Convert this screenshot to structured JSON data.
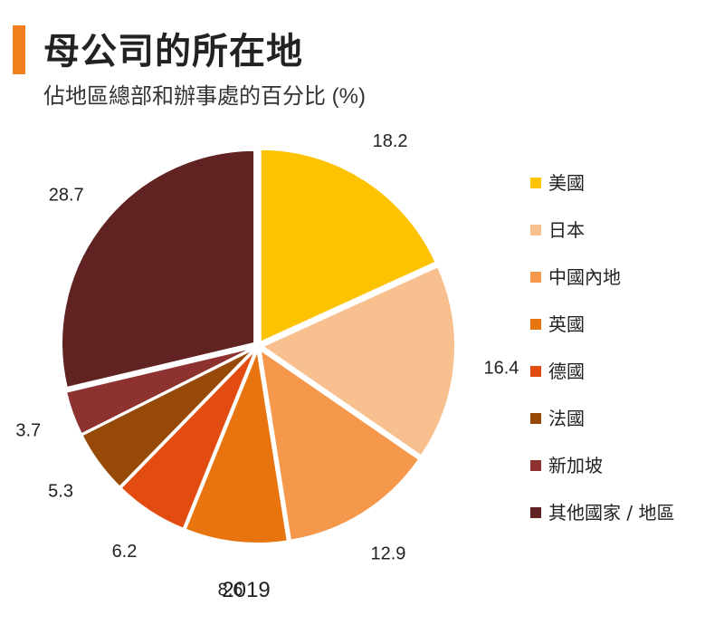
{
  "header": {
    "title": "母公司的所在地",
    "subtitle": "佔地區總部和辦事處的百分比 (%)",
    "accent_color": "#f07f1e"
  },
  "chart_data": {
    "type": "pie",
    "title": "母公司的所在地",
    "subtitle": "佔地區總部和辦事處的百分比 (%)",
    "caption": "2019",
    "legend_position": "right",
    "slices": [
      {
        "label": "美國",
        "value": 18.2,
        "color": "#fdc300"
      },
      {
        "label": "日本",
        "value": 16.4,
        "color": "#f9c08f"
      },
      {
        "label": "中國內地",
        "value": 12.9,
        "color": "#f6984b"
      },
      {
        "label": "英國",
        "value": 8.6,
        "color": "#e7740e"
      },
      {
        "label": "德國",
        "value": 6.2,
        "color": "#e24c10"
      },
      {
        "label": "法國",
        "value": 5.3,
        "color": "#974a08"
      },
      {
        "label": "新加坡",
        "value": 3.7,
        "color": "#8e3131"
      },
      {
        "label": "其他國家 / 地區",
        "value": 28.7,
        "color": "#612222"
      }
    ]
  }
}
